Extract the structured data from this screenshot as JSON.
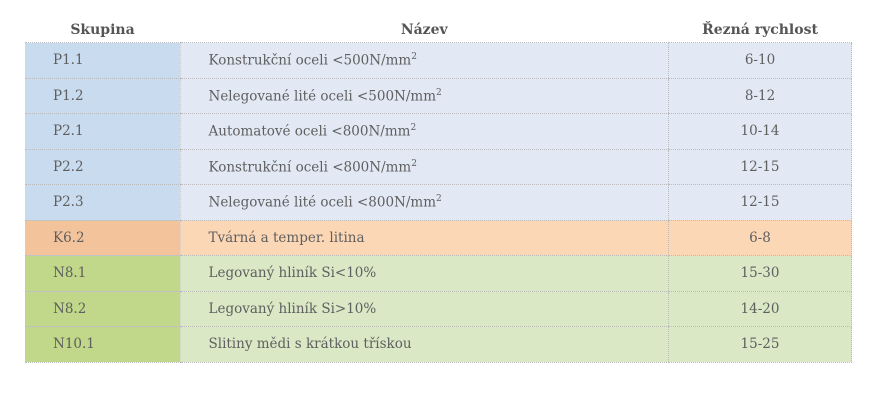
{
  "headers": {
    "group": "Skupina",
    "name": "Název",
    "speed": "Řezná rychlost"
  },
  "colors": {
    "P": "#c8dbef",
    "K": "#f3c39b",
    "N": "#c1d78a"
  },
  "rows": [
    {
      "cls": "P",
      "group": "P1.1",
      "name": "Konstrukční oceli <500N/mm",
      "sup": "2",
      "speed": "6-10"
    },
    {
      "cls": "P",
      "group": "P1.2",
      "name": "Nelegované lité oceli <500N/mm",
      "sup": "2",
      "speed": "8-12"
    },
    {
      "cls": "P",
      "group": "P2.1",
      "name": "Automatové oceli <800N/mm",
      "sup": "2",
      "speed": "10-14"
    },
    {
      "cls": "P",
      "group": "P2.2",
      "name": "Konstrukční oceli <800N/mm",
      "sup": "2",
      "speed": "12-15"
    },
    {
      "cls": "P",
      "group": "P2.3",
      "name": "Nelegované lité oceli <800N/mm",
      "sup": "2",
      "speed": "12-15"
    },
    {
      "cls": "K",
      "group": "K6.2",
      "name": "Tvárná a temper. litina",
      "speed": "6-8"
    },
    {
      "cls": "N",
      "group": "N8.1",
      "name": "Legovaný hliník Si<10%",
      "speed": "15-30"
    },
    {
      "cls": "N",
      "group": "N8.2",
      "name": "Legovaný hliník Si>10%",
      "speed": "14-20"
    },
    {
      "cls": "N",
      "group": "N10.1",
      "name": "Slitiny mědi s krátkou třískou",
      "speed": "15-25"
    }
  ]
}
